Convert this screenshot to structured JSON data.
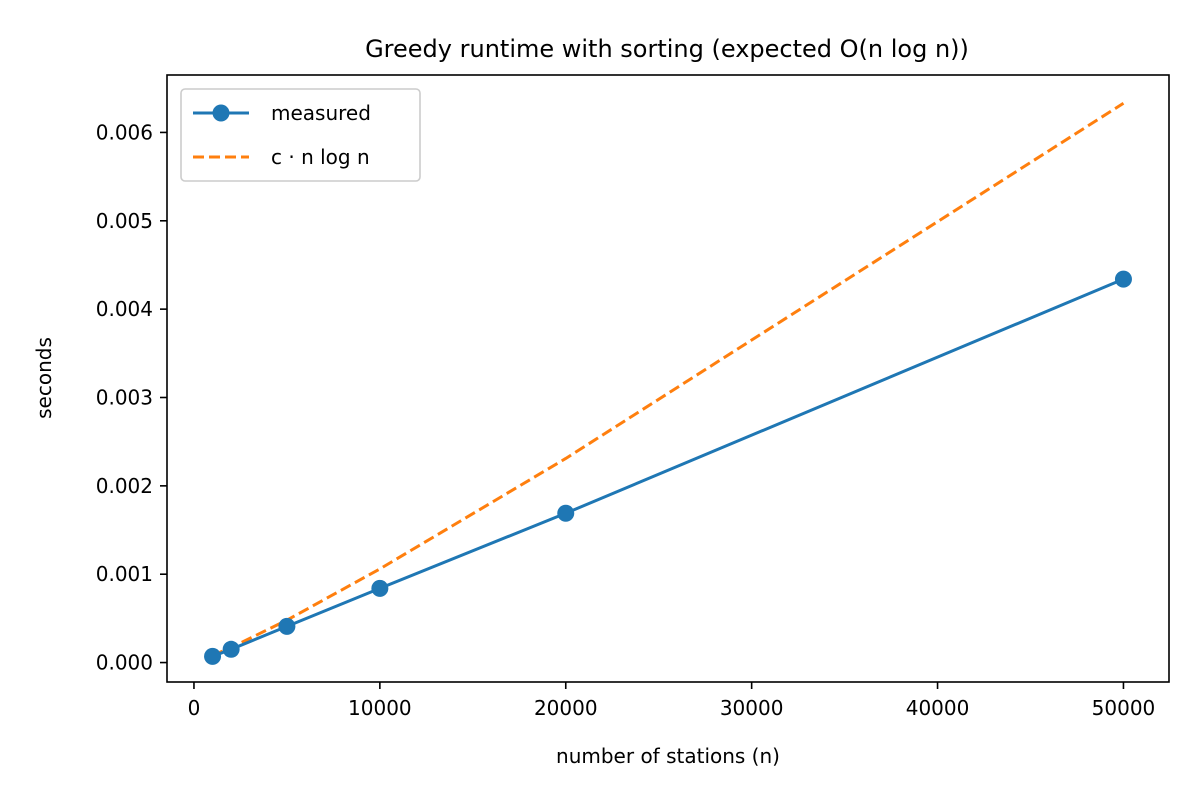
{
  "chart_data": {
    "type": "line",
    "title": "Greedy runtime with sorting (expected O(n log n))",
    "xlabel": "number of stations (n)",
    "ylabel": "seconds",
    "xlim": [
      -1450,
      52450
    ],
    "ylim": [
      -0.00022,
      0.00665
    ],
    "xticks": [
      0,
      10000,
      20000,
      30000,
      40000,
      50000
    ],
    "xtick_labels": [
      "0",
      "10000",
      "20000",
      "30000",
      "40000",
      "50000"
    ],
    "yticks": [
      0.0,
      0.001,
      0.002,
      0.003,
      0.004,
      0.005,
      0.006
    ],
    "ytick_labels": [
      "0.000",
      "0.001",
      "0.002",
      "0.003",
      "0.004",
      "0.005",
      "0.006"
    ],
    "grid": false,
    "legend_position": "top-left",
    "series": [
      {
        "name": "measured",
        "style": "solid-with-markers",
        "color": "#1f77b4",
        "x": [
          1000,
          2000,
          5000,
          10000,
          20000,
          50000
        ],
        "y": [
          7e-05,
          0.00015,
          0.00041,
          0.00084,
          0.00169,
          0.00434
        ]
      },
      {
        "name": "c · n log n",
        "style": "dashed",
        "color": "#ff7f0e",
        "x": [
          1000,
          2000,
          5000,
          10000,
          20000,
          50000
        ],
        "y": [
          8e-05,
          0.00017,
          0.00048,
          0.00106,
          0.00231,
          0.00633
        ]
      }
    ]
  }
}
